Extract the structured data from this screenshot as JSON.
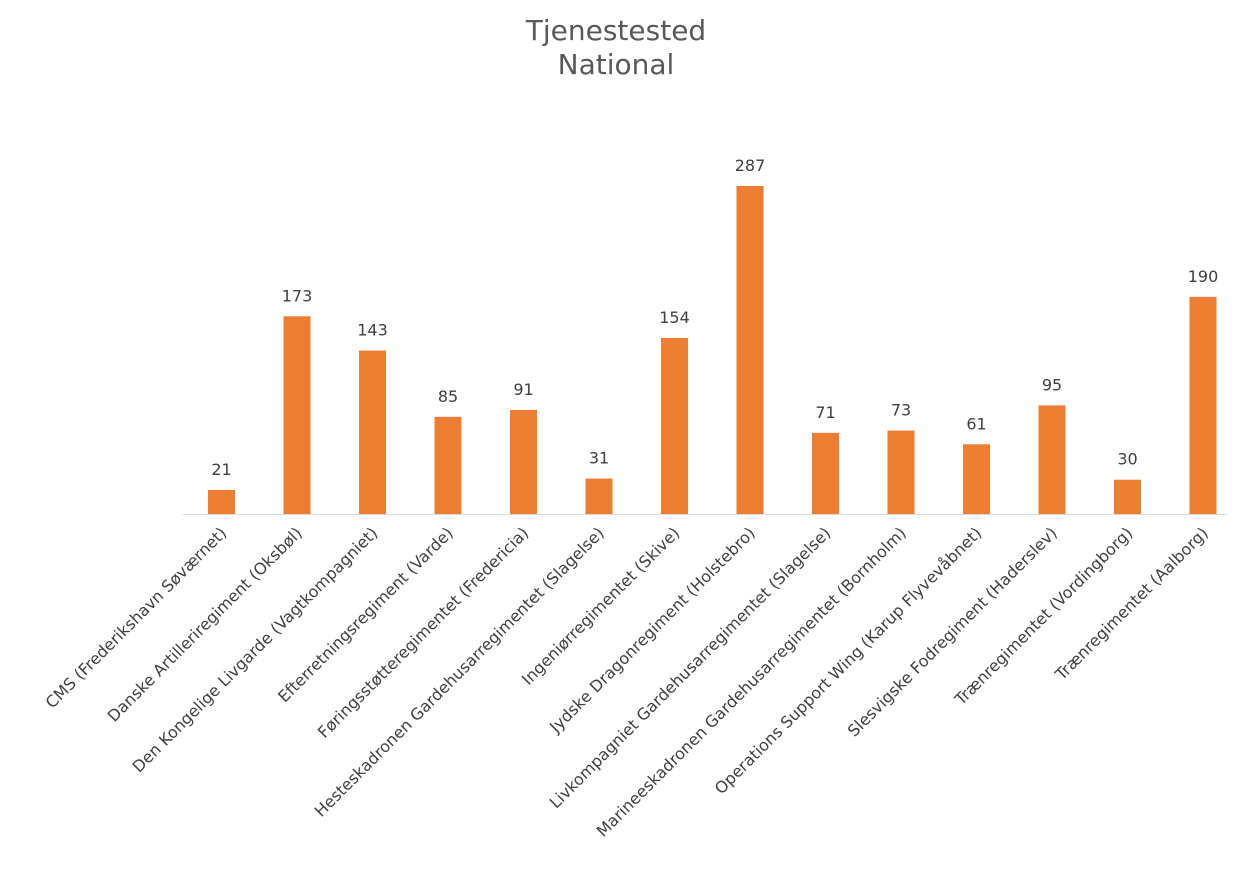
{
  "chart_data": {
    "type": "bar",
    "title_lines": [
      "Tjenestested",
      "National"
    ],
    "xlabel": "",
    "ylabel": "",
    "ylim": [
      0,
      287
    ],
    "grid": false,
    "legend": "none",
    "bar_color": "#ED7D31",
    "axis_color": "#D9D9D9",
    "categories": [
      "CMS (Frederikshavn Søværnet)",
      "Danske Artilleriregiment (Oksbøl)",
      "Den Kongelige Livgarde (Vagtkompagniet)",
      "Efterretningsregiment (Varde)",
      "Føringsstøtteregimentet (Fredericia)",
      "Hesteskadronen Gardehusarregimentet (Slagelse)",
      "Ingeniørregimentet (Skive)",
      "Jydske Dragonregiment (Holstebro)",
      "Livkompagniet Gardehusarregimentet (Slagelse)",
      "Marineeskadronen Gardehusarregimentet (Bornholm)",
      "Operations Support Wing (Karup Flyvevåbnet)",
      "Slesvigske Fodregiment (Haderslev)",
      "Trænregimentet (Vordingborg)",
      "Trænregimentet (Aalborg)"
    ],
    "values": [
      21,
      173,
      143,
      85,
      91,
      31,
      154,
      287,
      71,
      73,
      61,
      95,
      30,
      190
    ]
  }
}
